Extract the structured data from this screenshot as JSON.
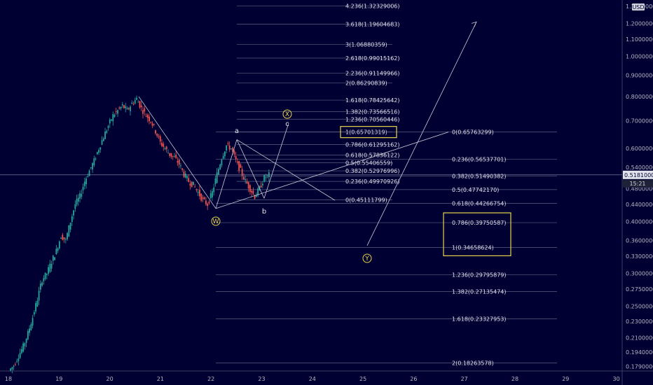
{
  "chart_data": {
    "type": "candlestick",
    "currency": "USD",
    "last_price": "0.51810000",
    "countdown": "15:21",
    "x_ticks": [
      "18",
      "19",
      "20",
      "21",
      "22",
      "23",
      "24",
      "25",
      "26",
      "27",
      "28",
      "29",
      "30"
    ],
    "y_ticks": [
      "1.32000000",
      "1.20000000",
      "1.10000000",
      "1.00000000",
      "0.90000000",
      "0.80000000",
      "0.70000000",
      "0.60000000",
      "0.54000000",
      "0.48000000",
      "0.44000000",
      "0.40000000",
      "0.36000000",
      "0.33000000",
      "0.30000000",
      "0.27500000",
      "0.25000000",
      "0.23000000",
      "0.21000000",
      "0.19400000",
      "0.17900000"
    ],
    "y_scale": "log",
    "price_close_series": [
      0.175,
      0.18,
      0.19,
      0.2,
      0.215,
      0.235,
      0.26,
      0.29,
      0.3,
      0.32,
      0.34,
      0.37,
      0.36,
      0.4,
      0.44,
      0.46,
      0.5,
      0.53,
      0.56,
      0.6,
      0.64,
      0.68,
      0.72,
      0.74,
      0.76,
      0.74,
      0.77,
      0.79,
      0.75,
      0.72,
      0.7,
      0.66,
      0.62,
      0.6,
      0.58,
      0.57,
      0.55,
      0.52,
      0.5,
      0.49,
      0.47,
      0.45,
      0.44,
      0.47,
      0.52,
      0.57,
      0.61,
      0.6,
      0.56,
      0.53,
      0.5,
      0.48,
      0.46,
      0.48,
      0.51,
      0.518
    ],
    "fib_left": [
      {
        "label": "4.236(1.32329006)",
        "value": 1.32329006
      },
      {
        "label": "3.618(1.19604683)",
        "value": 1.19604683
      },
      {
        "label": "3(1.06880359)",
        "value": 1.06880359
      },
      {
        "label": "2.618(0.99015162)",
        "value": 0.99015162
      },
      {
        "label": "2.236(0.91149966)",
        "value": 0.91149966
      },
      {
        "label": "2(0.86290839)",
        "value": 0.86290839
      },
      {
        "label": "1.618(0.78425642)",
        "value": 0.78425642
      },
      {
        "label": "1.382(0.73566516)",
        "value": 0.73566516
      },
      {
        "label": "1.236(0.70560446)",
        "value": 0.70560446
      },
      {
        "label": "1(0.65701319)",
        "value": 0.65701319
      },
      {
        "label": "0.786(0.61295162)",
        "value": 0.61295162
      },
      {
        "label": "0.618(0.57836122)",
        "value": 0.57836122
      },
      {
        "label": "0.5(0.55406559)",
        "value": 0.55406559
      },
      {
        "label": "0.382(0.52976996)",
        "value": 0.52976996
      },
      {
        "label": "0.236(0.49970926)",
        "value": 0.49970926
      },
      {
        "label": "0(0.45111799)",
        "value": 0.45111799
      }
    ],
    "fib_right": [
      {
        "label": "0(0.65763299)",
        "value": 0.65763299
      },
      {
        "label": "0.236(0.56537701)",
        "value": 0.56537701
      },
      {
        "label": "0.382(0.51490382)",
        "value": 0.51490382
      },
      {
        "label": "0.5(0.47742170)",
        "value": 0.4774217
      },
      {
        "label": "0.618(0.44266754)",
        "value": 0.44266754
      },
      {
        "label": "0.786(0.39750587)",
        "value": 0.39750587
      },
      {
        "label": "1(0.34658624)",
        "value": 0.34658624
      },
      {
        "label": "1.236(0.29795879)",
        "value": 0.29795879
      },
      {
        "label": "1.382(0.27135474)",
        "value": 0.27135474
      },
      {
        "label": "1.618(0.23327953)",
        "value": 0.23327953
      },
      {
        "label": "2(0.18263578)",
        "value": 0.18263578
      }
    ],
    "wave_labels": [
      "W",
      "X",
      "Y",
      "a",
      "b",
      "c"
    ],
    "colors": {
      "background": "#000033",
      "up": "#26a69a",
      "down": "#ef5350",
      "highlight": "#e8d44d",
      "axis_text": "#b2b5be",
      "drawings": "#c8ccd8"
    }
  }
}
